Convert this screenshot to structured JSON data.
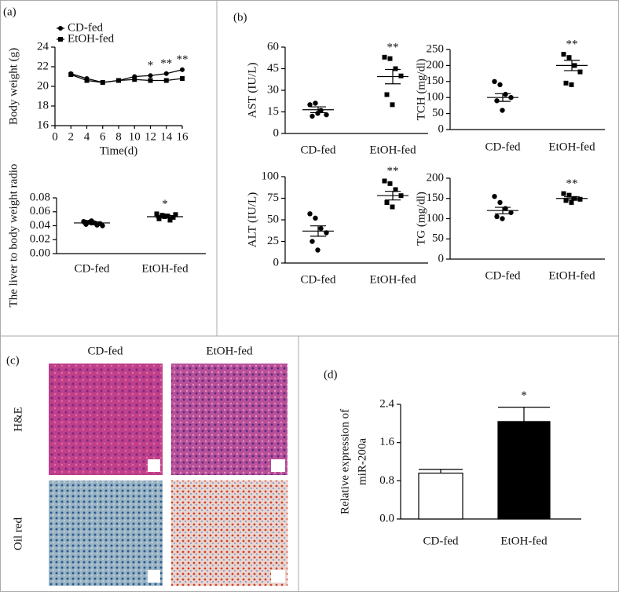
{
  "panel_labels": [
    "(a)",
    "(b)",
    "(c)",
    "(d)"
  ],
  "micrographs": {
    "columns": [
      "CD-fed",
      "EtOH-fed"
    ],
    "rows": [
      "H&E",
      "Oil red"
    ]
  },
  "chart_data": [
    {
      "type": "line",
      "x_label": "Time(d)",
      "y_label": "Body weight (g)",
      "x": [
        2,
        4,
        6,
        8,
        10,
        12,
        14,
        16
      ],
      "xlim": [
        0,
        16
      ],
      "xticks": [
        0,
        2,
        4,
        6,
        8,
        10,
        12,
        14,
        16
      ],
      "ylim": [
        16,
        24
      ],
      "yticks": [
        16,
        18,
        20,
        22,
        24
      ],
      "legend": "top-left",
      "series": [
        {
          "name": "CD-fed",
          "color": "#000000",
          "marker": "circle",
          "values": [
            21.3,
            20.8,
            20.4,
            20.6,
            21.0,
            21.1,
            21.3,
            21.7
          ]
        },
        {
          "name": "EtOH-fed",
          "color": "#000000",
          "marker": "square",
          "values": [
            21.2,
            20.6,
            20.4,
            20.6,
            20.7,
            20.6,
            20.6,
            20.8
          ]
        }
      ],
      "significance": [
        null,
        null,
        null,
        null,
        null,
        "*",
        "**",
        "**"
      ]
    },
    {
      "type": "dot",
      "y_label": "The liver to body weight radio",
      "categories": [
        "CD-fed",
        "EtOH-fed"
      ],
      "ylim": [
        0,
        0.08
      ],
      "yticks": [
        {
          "value": 0,
          "label": "0.00"
        },
        {
          "value": 0.02,
          "label": "0.02"
        },
        {
          "value": 0.04,
          "label": "0.04"
        },
        {
          "value": 0.06,
          "label": "0.06"
        },
        {
          "value": 0.08,
          "label": "0.08"
        }
      ],
      "points": [
        [
          0.046,
          0.045,
          0.044,
          0.043,
          0.042,
          0.044,
          0.041,
          0.04,
          0.045,
          0.047
        ],
        [
          0.057,
          0.055,
          0.054,
          0.052,
          0.05,
          0.053,
          0.048,
          0.056,
          0.051,
          0.054
        ]
      ],
      "means": [
        0.044,
        0.053
      ],
      "sem": [
        0.0015,
        0.0016
      ],
      "significance": [
        null,
        "*"
      ]
    },
    {
      "type": "dot",
      "y_label": "AST (IU/L)",
      "categories": [
        "CD-fed",
        "EtOH-fed"
      ],
      "ylim": [
        0,
        60
      ],
      "yticks": [
        0,
        15,
        30,
        45,
        60
      ],
      "points": [
        [
          20,
          21,
          16,
          13,
          12,
          14
        ],
        [
          53,
          52,
          45,
          40,
          27,
          20
        ]
      ],
      "means": [
        16.5,
        39.5
      ],
      "sem": [
        2,
        5
      ],
      "significance": [
        null,
        "**"
      ]
    },
    {
      "type": "dot",
      "y_label": "TCH (mg/dl)",
      "categories": [
        "CD-fed",
        "EtOH-fed"
      ],
      "ylim": [
        0,
        250
      ],
      "yticks": [
        0,
        50,
        100,
        150,
        200,
        250
      ],
      "points": [
        [
          150,
          140,
          110,
          100,
          90,
          60
        ],
        [
          235,
          225,
          200,
          180,
          145,
          140
        ]
      ],
      "means": [
        100,
        200
      ],
      "sem": [
        12,
        16
      ],
      "significance": [
        null,
        "**"
      ]
    },
    {
      "type": "dot",
      "y_label": "ALT (IU/L)",
      "categories": [
        "CD-fed",
        "EtOH-fed"
      ],
      "ylim": [
        0,
        100
      ],
      "yticks": [
        0,
        25,
        50,
        75,
        100
      ],
      "points": [
        [
          57,
          52,
          40,
          35,
          25,
          15
        ],
        [
          95,
          92,
          85,
          78,
          70,
          65
        ]
      ],
      "means": [
        37,
        78
      ],
      "sem": [
        6,
        5
      ],
      "significance": [
        null,
        "**"
      ]
    },
    {
      "type": "dot",
      "y_label": "TG (mg/dl)",
      "categories": [
        "CD-fed",
        "EtOH-fed"
      ],
      "ylim": [
        0,
        200
      ],
      "yticks": [
        0,
        50,
        100,
        150,
        200
      ],
      "points": [
        [
          155,
          140,
          125,
          115,
          105,
          100
        ],
        [
          162,
          158,
          150,
          148,
          145,
          140
        ]
      ],
      "means": [
        120,
        150
      ],
      "sem": [
        8,
        4
      ],
      "significance": [
        null,
        "**"
      ]
    },
    {
      "type": "bar",
      "y_label": [
        "Relative expression of",
        "miR-200a"
      ],
      "categories": [
        "CD-fed",
        "EtOH-fed"
      ],
      "ylim": [
        0,
        2.4
      ],
      "yticks": [
        {
          "value": 0,
          "label": "0.0"
        },
        {
          "value": 0.8,
          "label": "0.8"
        },
        {
          "value": 1.6,
          "label": "1.6"
        },
        {
          "value": 2.4,
          "label": "2.4"
        }
      ],
      "values": [
        0.96,
        2.04
      ],
      "errors": [
        0.08,
        0.3
      ],
      "colors": [
        "#ffffff",
        "#000000"
      ],
      "significance": [
        null,
        "*"
      ]
    }
  ]
}
